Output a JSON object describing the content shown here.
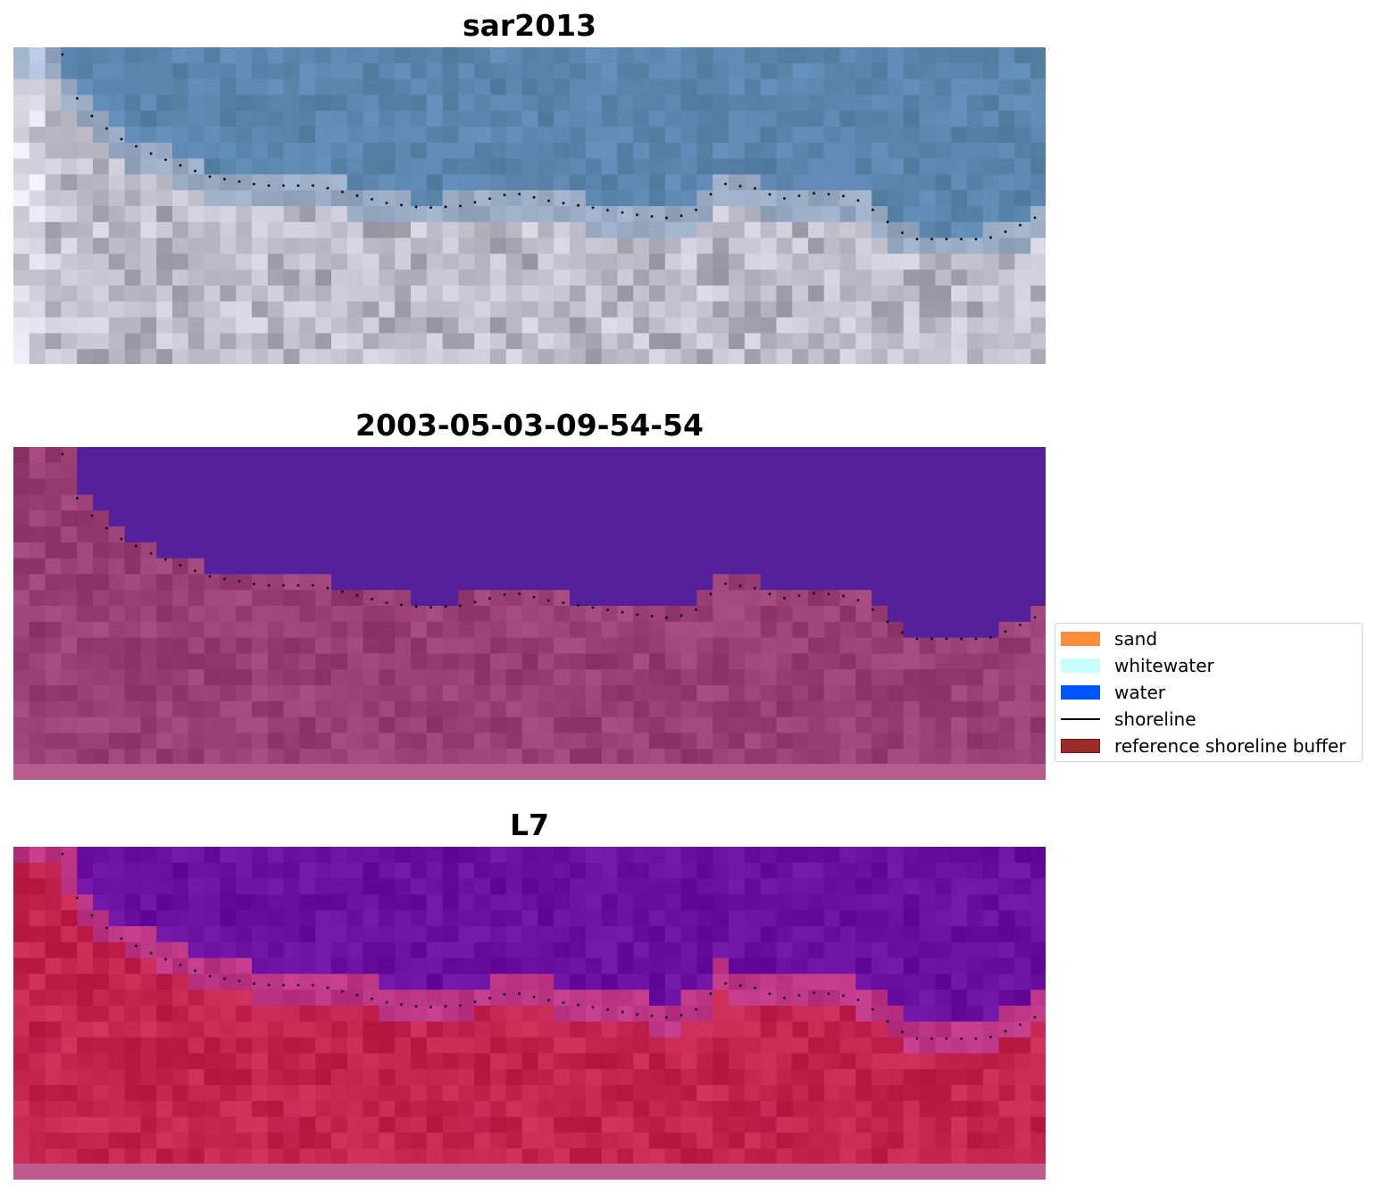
{
  "panels": {
    "rgb": {
      "title": "sar2013"
    },
    "classified": {
      "title": "2003-05-03-09-54-54"
    },
    "mndwi": {
      "title": "L7"
    }
  },
  "legend": {
    "items": [
      {
        "label": "sand",
        "color": "#ff8c3c",
        "kind": "patch"
      },
      {
        "label": "whitewater",
        "color": "#c8ffff",
        "kind": "patch"
      },
      {
        "label": "water",
        "color": "#0055ff",
        "kind": "patch"
      },
      {
        "label": "shoreline",
        "color": "#000000",
        "kind": "line"
      },
      {
        "label": "reference shoreline buffer",
        "color": "#9b2c2c",
        "kind": "patch"
      }
    ]
  },
  "colors": {
    "water_class": "#54219a",
    "land_overlay": "#8f3f76",
    "index_water": "#6a0fa0",
    "index_land": "#c2234f",
    "shoreline_dots": "#000000",
    "rgb_water": "#5b85ad",
    "rgb_land": "#c9c6d3"
  }
}
